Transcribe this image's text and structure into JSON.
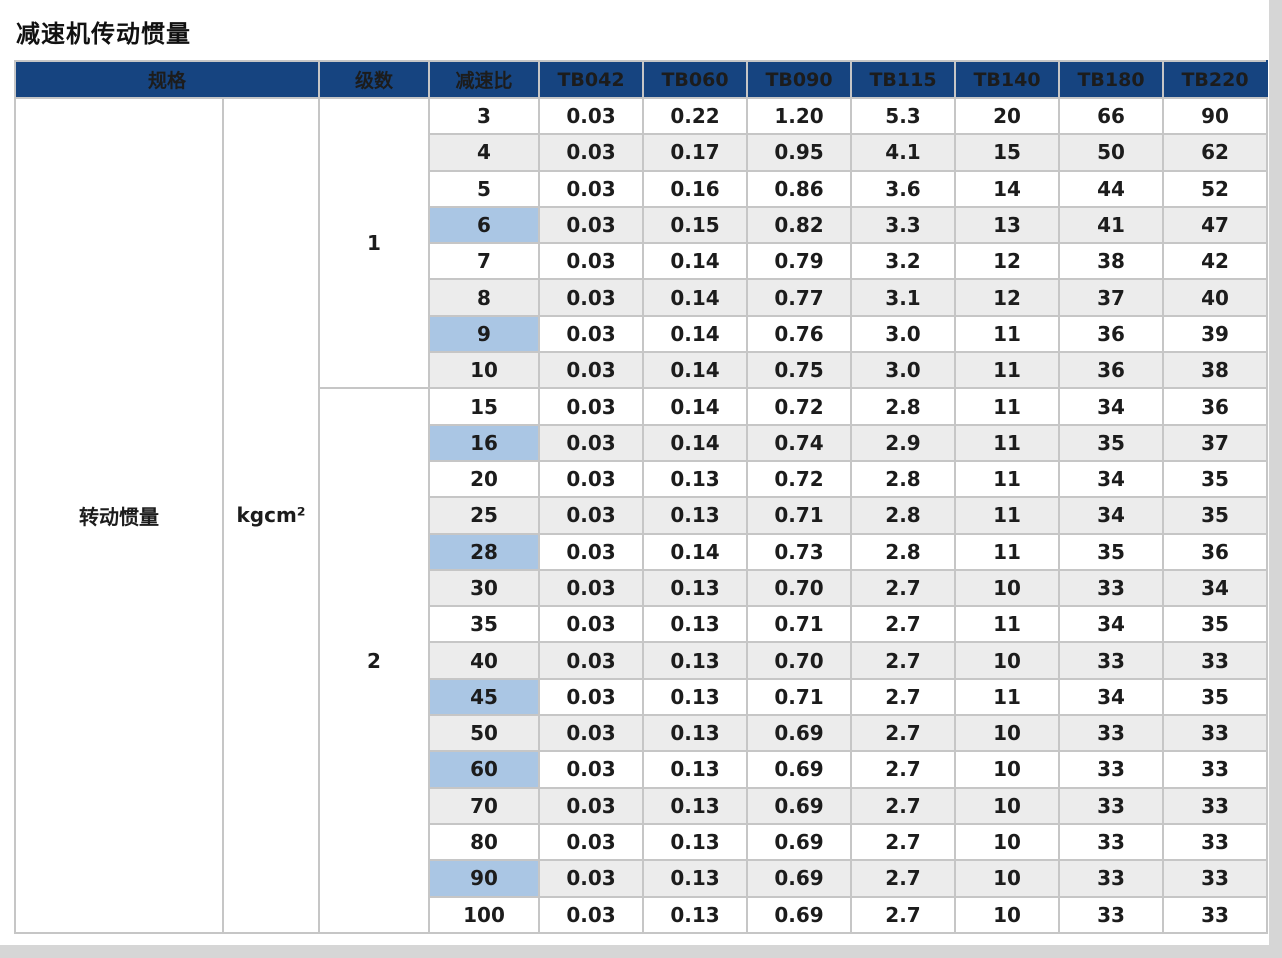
{
  "title": "减速机传动惯量",
  "colors": {
    "header_bg": "#164480",
    "header_text": "#ffffff",
    "row_alt_bg": "#ececec",
    "highlight_bg": "#aac6e4",
    "border": "#c6c6c6",
    "text": "#1c1c1c"
  },
  "table": {
    "header": {
      "spec": "规格",
      "stages": "级数",
      "ratio": "减速比",
      "models": [
        "TB042",
        "TB060",
        "TB090",
        "TB115",
        "TB140",
        "TB180",
        "TB220"
      ]
    },
    "spec_label": "转动惯量",
    "unit": "kgcm²",
    "stage_groups": [
      {
        "stage": "1",
        "rows": [
          {
            "ratio": "3",
            "highlight": false,
            "values": [
              "0.03",
              "0.22",
              "1.20",
              "5.3",
              "20",
              "66",
              "90"
            ]
          },
          {
            "ratio": "4",
            "highlight": false,
            "values": [
              "0.03",
              "0.17",
              "0.95",
              "4.1",
              "15",
              "50",
              "62"
            ]
          },
          {
            "ratio": "5",
            "highlight": false,
            "values": [
              "0.03",
              "0.16",
              "0.86",
              "3.6",
              "14",
              "44",
              "52"
            ]
          },
          {
            "ratio": "6",
            "highlight": true,
            "values": [
              "0.03",
              "0.15",
              "0.82",
              "3.3",
              "13",
              "41",
              "47"
            ]
          },
          {
            "ratio": "7",
            "highlight": false,
            "values": [
              "0.03",
              "0.14",
              "0.79",
              "3.2",
              "12",
              "38",
              "42"
            ]
          },
          {
            "ratio": "8",
            "highlight": false,
            "values": [
              "0.03",
              "0.14",
              "0.77",
              "3.1",
              "12",
              "37",
              "40"
            ]
          },
          {
            "ratio": "9",
            "highlight": true,
            "values": [
              "0.03",
              "0.14",
              "0.76",
              "3.0",
              "11",
              "36",
              "39"
            ]
          },
          {
            "ratio": "10",
            "highlight": false,
            "values": [
              "0.03",
              "0.14",
              "0.75",
              "3.0",
              "11",
              "36",
              "38"
            ]
          }
        ]
      },
      {
        "stage": "2",
        "rows": [
          {
            "ratio": "15",
            "highlight": false,
            "values": [
              "0.03",
              "0.14",
              "0.72",
              "2.8",
              "11",
              "34",
              "36"
            ]
          },
          {
            "ratio": "16",
            "highlight": true,
            "values": [
              "0.03",
              "0.14",
              "0.74",
              "2.9",
              "11",
              "35",
              "37"
            ]
          },
          {
            "ratio": "20",
            "highlight": false,
            "values": [
              "0.03",
              "0.13",
              "0.72",
              "2.8",
              "11",
              "34",
              "35"
            ]
          },
          {
            "ratio": "25",
            "highlight": false,
            "values": [
              "0.03",
              "0.13",
              "0.71",
              "2.8",
              "11",
              "34",
              "35"
            ]
          },
          {
            "ratio": "28",
            "highlight": true,
            "values": [
              "0.03",
              "0.14",
              "0.73",
              "2.8",
              "11",
              "35",
              "36"
            ]
          },
          {
            "ratio": "30",
            "highlight": false,
            "values": [
              "0.03",
              "0.13",
              "0.70",
              "2.7",
              "10",
              "33",
              "34"
            ]
          },
          {
            "ratio": "35",
            "highlight": false,
            "values": [
              "0.03",
              "0.13",
              "0.71",
              "2.7",
              "11",
              "34",
              "35"
            ]
          },
          {
            "ratio": "40",
            "highlight": false,
            "values": [
              "0.03",
              "0.13",
              "0.70",
              "2.7",
              "10",
              "33",
              "33"
            ]
          },
          {
            "ratio": "45",
            "highlight": true,
            "values": [
              "0.03",
              "0.13",
              "0.71",
              "2.7",
              "11",
              "34",
              "35"
            ]
          },
          {
            "ratio": "50",
            "highlight": false,
            "values": [
              "0.03",
              "0.13",
              "0.69",
              "2.7",
              "10",
              "33",
              "33"
            ]
          },
          {
            "ratio": "60",
            "highlight": true,
            "values": [
              "0.03",
              "0.13",
              "0.69",
              "2.7",
              "10",
              "33",
              "33"
            ]
          },
          {
            "ratio": "70",
            "highlight": false,
            "values": [
              "0.03",
              "0.13",
              "0.69",
              "2.7",
              "10",
              "33",
              "33"
            ]
          },
          {
            "ratio": "80",
            "highlight": false,
            "values": [
              "0.03",
              "0.13",
              "0.69",
              "2.7",
              "10",
              "33",
              "33"
            ]
          },
          {
            "ratio": "90",
            "highlight": true,
            "values": [
              "0.03",
              "0.13",
              "0.69",
              "2.7",
              "10",
              "33",
              "33"
            ]
          },
          {
            "ratio": "100",
            "highlight": false,
            "values": [
              "0.03",
              "0.13",
              "0.69",
              "2.7",
              "10",
              "33",
              "33"
            ]
          }
        ]
      }
    ]
  }
}
